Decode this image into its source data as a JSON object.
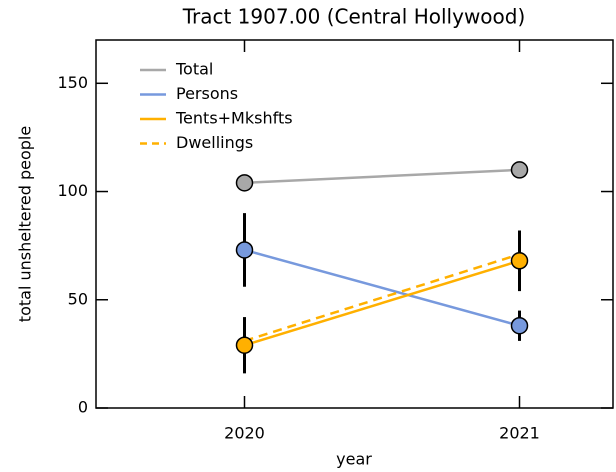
{
  "chart_data": {
    "type": "line",
    "title": "Tract 1907.00 (Central Hollywood)",
    "x_label": "year",
    "y_label": "total unsheltered people",
    "x": [
      2020,
      2021
    ],
    "series": [
      {
        "name": "Total",
        "color": "#a8a8a8",
        "values": [
          104,
          110
        ],
        "marker": true
      },
      {
        "name": "Persons",
        "color": "#7799dd",
        "values": [
          73,
          38
        ],
        "errors": [
          17,
          7
        ],
        "marker": true
      },
      {
        "name": "Tents+Mkshfts",
        "color": "#ffb000",
        "values": [
          29,
          68
        ],
        "errors": [
          13,
          14
        ],
        "marker": true
      },
      {
        "name": "Dwellings",
        "color": "#ffb000",
        "values": [
          31,
          71
        ],
        "dashed": true,
        "marker": false
      }
    ],
    "xlim": [
      2019.46,
      2021.34
    ],
    "xticks": [
      2020,
      2021
    ],
    "ylim": [
      0,
      170
    ],
    "yticks": [
      0,
      50,
      100,
      150
    ],
    "legend": "upper-left"
  }
}
